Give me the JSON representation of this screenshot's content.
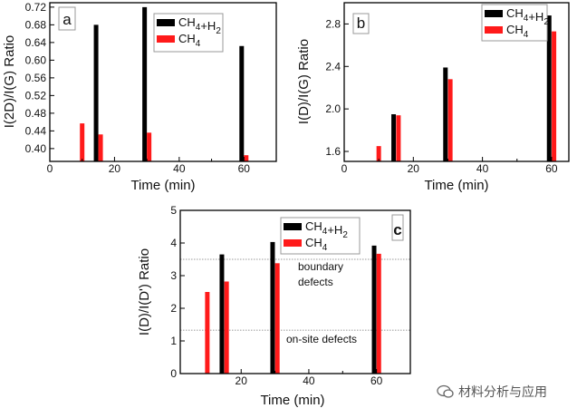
{
  "chart_data": [
    {
      "type": "bar",
      "panel_label": "a",
      "xlabel": "Time (min)",
      "ylabel": "I(2D)/I(G) Ratio",
      "xlim": [
        0,
        70
      ],
      "ylim": [
        0.371,
        0.73
      ],
      "xticks": [
        0,
        20,
        40,
        60
      ],
      "yticks": [
        0.4,
        0.44,
        0.48,
        0.52,
        0.56,
        0.6,
        0.64,
        0.68,
        0.72
      ],
      "ytick_decimals": 2,
      "legend": "top-right",
      "series": [
        {
          "name": "CH4+H2",
          "color": "#000000",
          "x": [
            15,
            30,
            60
          ],
          "values": [
            0.68,
            0.72,
            0.632
          ]
        },
        {
          "name": "CH4",
          "color": "#ff1a1a",
          "x": [
            10,
            15,
            30,
            60
          ],
          "values": [
            0.457,
            0.432,
            0.436,
            0.385
          ]
        }
      ]
    },
    {
      "type": "bar",
      "panel_label": "b",
      "xlabel": "Time (min)",
      "ylabel": "I(D)/I(G) Ratio",
      "xlim": [
        0,
        65
      ],
      "ylim": [
        1.506,
        3.0
      ],
      "xticks": [
        0,
        20,
        40,
        60
      ],
      "yticks": [
        1.6,
        2.0,
        2.4,
        2.8
      ],
      "ytick_decimals": 1,
      "legend": "top-right",
      "series": [
        {
          "name": "CH4+H2",
          "color": "#000000",
          "x": [
            15,
            30,
            60
          ],
          "values": [
            1.95,
            2.39,
            2.88
          ]
        },
        {
          "name": "CH4",
          "color": "#ff1a1a",
          "x": [
            10,
            15,
            30,
            60
          ],
          "values": [
            1.65,
            1.94,
            2.28,
            2.73
          ]
        }
      ]
    },
    {
      "type": "bar",
      "panel_label": "c",
      "xlabel": "Time (min)",
      "ylabel": "I(D)/I(D') Ratio",
      "xlim": [
        2,
        70
      ],
      "ylim": [
        0,
        5
      ],
      "xticks": [
        20,
        40,
        60
      ],
      "yticks": [
        0,
        1,
        2,
        3,
        4,
        5
      ],
      "ytick_decimals": 0,
      "legend": "top-center",
      "reference_lines": [
        3.5,
        1.33
      ],
      "annotations": [
        "boundary",
        "defects",
        "on-site defects"
      ],
      "series": [
        {
          "name": "CH4+H2",
          "color": "#000000",
          "x": [
            15,
            30,
            60
          ],
          "values": [
            3.65,
            4.03,
            3.92
          ]
        },
        {
          "name": "CH4",
          "color": "#ff1a1a",
          "x": [
            10,
            15,
            30,
            60
          ],
          "values": [
            2.5,
            2.82,
            3.38,
            3.67
          ]
        }
      ]
    }
  ],
  "watermark": "材料分析与应用"
}
